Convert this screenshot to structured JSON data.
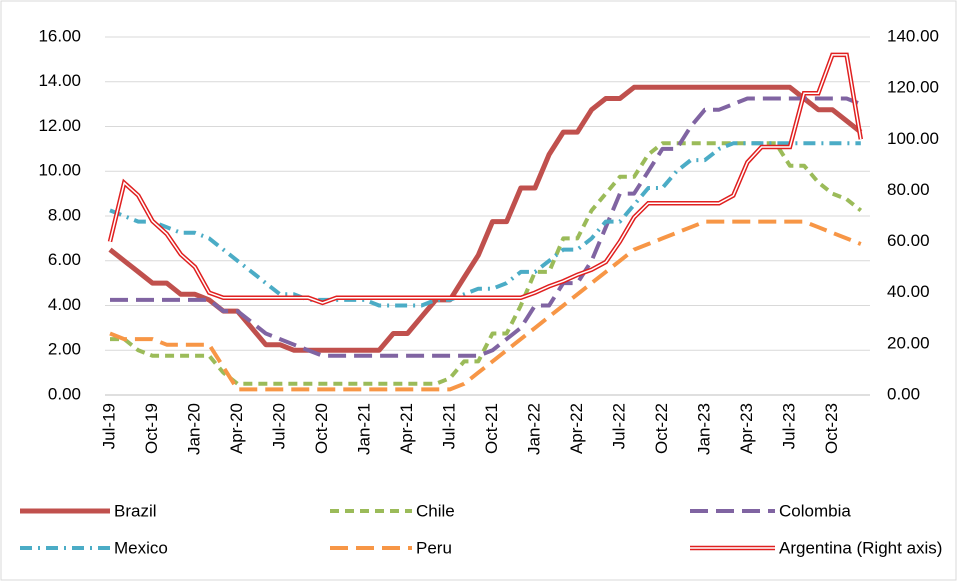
{
  "chart_data": {
    "type": "line",
    "categories": [
      "Jul-19",
      null,
      null,
      "Oct-19",
      null,
      null,
      "Jan-20",
      null,
      null,
      "Apr-20",
      null,
      null,
      "Jul-20",
      null,
      null,
      "Oct-20",
      null,
      null,
      "Jan-21",
      null,
      null,
      "Apr-21",
      null,
      null,
      "Jul-21",
      null,
      null,
      "Oct-21",
      null,
      null,
      "Jan-22",
      null,
      null,
      "Apr-22",
      null,
      null,
      "Jul-22",
      null,
      null,
      "Oct-22",
      null,
      null,
      "Jan-23",
      null,
      null,
      "Apr-23",
      null,
      null,
      "Jul-23",
      null,
      null,
      "Oct-23",
      null,
      null
    ],
    "series": [
      {
        "name": "Brazil",
        "color": "#c0504d",
        "style": "solid",
        "values": [
          6.5,
          6.0,
          5.5,
          5.0,
          5.0,
          4.5,
          4.5,
          4.25,
          3.75,
          3.75,
          3.0,
          2.25,
          2.25,
          2.0,
          2.0,
          2.0,
          2.0,
          2.0,
          2.0,
          2.0,
          2.75,
          2.75,
          3.5,
          4.25,
          4.25,
          5.25,
          6.25,
          7.75,
          7.75,
          9.25,
          9.25,
          10.75,
          11.75,
          11.75,
          12.75,
          13.25,
          13.25,
          13.75,
          13.75,
          13.75,
          13.75,
          13.75,
          13.75,
          13.75,
          13.75,
          13.75,
          13.75,
          13.75,
          13.75,
          13.25,
          12.75,
          12.75,
          12.25,
          11.75
        ]
      },
      {
        "name": "Chile",
        "color": "#9bbb59",
        "style": "dash",
        "values": [
          2.5,
          2.5,
          2.0,
          1.75,
          1.75,
          1.75,
          1.75,
          1.75,
          1.0,
          0.5,
          0.5,
          0.5,
          0.5,
          0.5,
          0.5,
          0.5,
          0.5,
          0.5,
          0.5,
          0.5,
          0.5,
          0.5,
          0.5,
          0.5,
          0.75,
          1.5,
          1.5,
          2.75,
          2.75,
          4.0,
          5.5,
          5.5,
          7.0,
          7.0,
          8.25,
          9.0,
          9.75,
          9.75,
          10.75,
          11.25,
          11.25,
          11.25,
          11.25,
          11.25,
          11.25,
          11.25,
          11.25,
          11.25,
          10.25,
          10.25,
          9.5,
          9.0,
          8.75,
          8.25
        ]
      },
      {
        "name": "Colombia",
        "color": "#8064a2",
        "style": "longdash",
        "values": [
          4.25,
          4.25,
          4.25,
          4.25,
          4.25,
          4.25,
          4.25,
          4.25,
          3.75,
          3.75,
          3.25,
          2.75,
          2.5,
          2.25,
          2.0,
          1.75,
          1.75,
          1.75,
          1.75,
          1.75,
          1.75,
          1.75,
          1.75,
          1.75,
          1.75,
          1.75,
          1.75,
          2.0,
          2.5,
          3.0,
          4.0,
          4.0,
          5.0,
          5.0,
          6.0,
          7.5,
          9.0,
          9.0,
          10.0,
          11.0,
          11.0,
          12.0,
          12.75,
          12.75,
          13.0,
          13.25,
          13.25,
          13.25,
          13.25,
          13.25,
          13.25,
          13.25,
          13.25,
          13.0
        ]
      },
      {
        "name": "Mexico",
        "color": "#4bacc6",
        "style": "dashdot",
        "values": [
          8.25,
          8.0,
          7.75,
          7.75,
          7.5,
          7.25,
          7.25,
          7.0,
          6.5,
          6.0,
          5.5,
          5.0,
          4.5,
          4.5,
          4.25,
          4.25,
          4.25,
          4.25,
          4.25,
          4.0,
          4.0,
          4.0,
          4.0,
          4.25,
          4.25,
          4.5,
          4.75,
          4.75,
          5.0,
          5.5,
          5.5,
          6.0,
          6.5,
          6.5,
          7.0,
          7.75,
          7.75,
          8.5,
          9.25,
          9.25,
          10.0,
          10.5,
          10.5,
          11.0,
          11.25,
          11.25,
          11.25,
          11.25,
          11.25,
          11.25,
          11.25,
          11.25,
          11.25,
          11.25
        ]
      },
      {
        "name": "Peru",
        "color": "#f79646",
        "style": "longdash",
        "values": [
          2.75,
          2.5,
          2.5,
          2.5,
          2.25,
          2.25,
          2.25,
          2.25,
          1.25,
          0.25,
          0.25,
          0.25,
          0.25,
          0.25,
          0.25,
          0.25,
          0.25,
          0.25,
          0.25,
          0.25,
          0.25,
          0.25,
          0.25,
          0.25,
          0.25,
          0.5,
          1.0,
          1.5,
          2.0,
          2.5,
          3.0,
          3.5,
          4.0,
          4.5,
          5.0,
          5.5,
          6.0,
          6.5,
          6.75,
          7.0,
          7.25,
          7.5,
          7.75,
          7.75,
          7.75,
          7.75,
          7.75,
          7.75,
          7.75,
          7.75,
          7.5,
          7.25,
          7.0,
          6.75
        ]
      },
      {
        "name": "Argentina (Right axis)",
        "color": "#e02020",
        "style": "double",
        "axis": "y2",
        "values": [
          60,
          83,
          78,
          68,
          63,
          55,
          50,
          40,
          38,
          38,
          38,
          38,
          38,
          38,
          38,
          36,
          38,
          38,
          38,
          38,
          38,
          38,
          38,
          38,
          38,
          38,
          38,
          38,
          38,
          38,
          40,
          42.5,
          44.5,
          47,
          49,
          52,
          60,
          69.5,
          75,
          75,
          75,
          75,
          75,
          75,
          78,
          91,
          97,
          97,
          97,
          118,
          118,
          133,
          133,
          100
        ]
      }
    ],
    "ylim": [
      0,
      16
    ],
    "yticks": [
      {
        "value": 0,
        "label": "0.00"
      },
      {
        "value": 2,
        "label": "2.00"
      },
      {
        "value": 4,
        "label": "4.00"
      },
      {
        "value": 6,
        "label": "6.00"
      },
      {
        "value": 8,
        "label": "8.00"
      },
      {
        "value": 10,
        "label": "10.00"
      },
      {
        "value": 12,
        "label": "12.00"
      },
      {
        "value": 14,
        "label": "14.00"
      },
      {
        "value": 16,
        "label": "16.00"
      }
    ],
    "y2lim": [
      0,
      140
    ],
    "y2ticks": [
      {
        "value": 0,
        "label": "0.00"
      },
      {
        "value": 20,
        "label": "20.00"
      },
      {
        "value": 40,
        "label": "40.00"
      },
      {
        "value": 60,
        "label": "60.00"
      },
      {
        "value": 80,
        "label": "80.00"
      },
      {
        "value": 100,
        "label": "100.00"
      },
      {
        "value": 120,
        "label": "120.00"
      },
      {
        "value": 140,
        "label": "140.00"
      }
    ],
    "grid": true,
    "legend": "bottom"
  }
}
